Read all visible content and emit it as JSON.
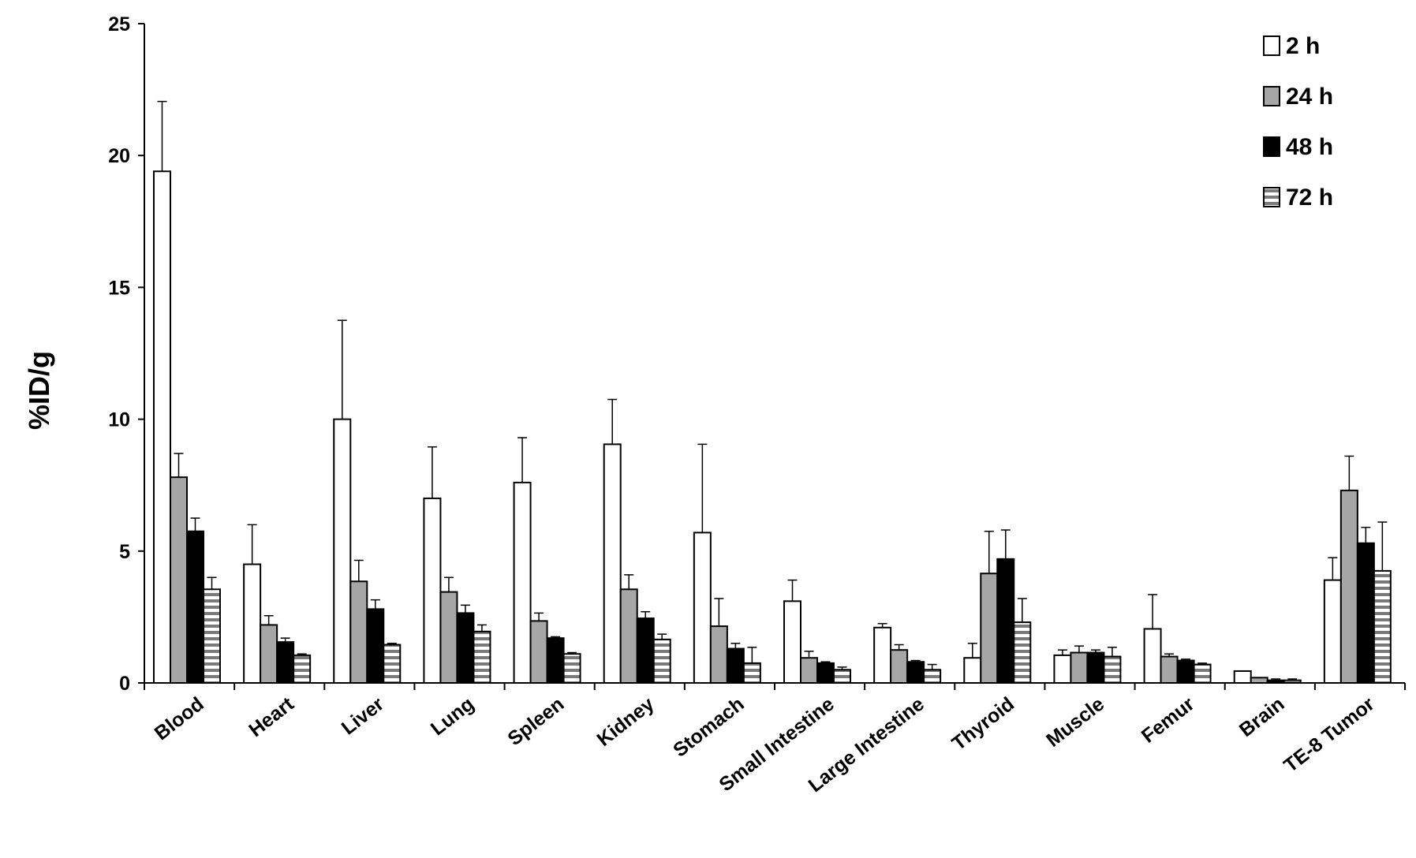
{
  "chart_data": {
    "type": "bar",
    "title": "",
    "xlabel": "",
    "ylabel": "%ID/g",
    "ylim": [
      0,
      25
    ],
    "yticks": [
      "0",
      "5",
      "10",
      "15",
      "20",
      "25"
    ],
    "grid": false,
    "legend_position": "top-right",
    "categories": [
      "Blood",
      "Heart",
      "Liver",
      "Lung",
      "Spleen",
      "Kidney",
      "Stomach",
      "Small Intestine",
      "Large Intestine",
      "Thyroid",
      "Muscle",
      "Femur",
      "Brain",
      "TE-8 Tumor"
    ],
    "series": [
      {
        "name": "2 h",
        "fill": "#ffffff",
        "pattern": "none",
        "values": [
          19.4,
          4.5,
          10.0,
          7.0,
          7.6,
          9.05,
          5.7,
          3.1,
          2.1,
          0.95,
          1.05,
          2.05,
          0.45,
          3.9
        ],
        "errors": [
          2.65,
          1.5,
          3.75,
          1.95,
          1.7,
          1.7,
          3.35,
          0.8,
          0.15,
          0.55,
          0.2,
          1.3,
          0.0,
          0.85
        ]
      },
      {
        "name": "24 h",
        "fill": "#a6a6a6",
        "pattern": "none",
        "values": [
          7.8,
          2.2,
          3.85,
          3.45,
          2.35,
          3.55,
          2.15,
          0.95,
          1.25,
          4.15,
          1.15,
          1.0,
          0.2,
          7.3
        ],
        "errors": [
          0.9,
          0.35,
          0.8,
          0.55,
          0.3,
          0.55,
          1.05,
          0.25,
          0.2,
          1.6,
          0.25,
          0.1,
          0.0,
          1.3
        ]
      },
      {
        "name": "48 h",
        "fill": "#000000",
        "pattern": "none",
        "values": [
          5.75,
          1.55,
          2.8,
          2.65,
          1.7,
          2.45,
          1.3,
          0.75,
          0.8,
          4.7,
          1.15,
          0.85,
          0.1,
          5.3
        ],
        "errors": [
          0.5,
          0.15,
          0.35,
          0.3,
          0.05,
          0.25,
          0.2,
          0.05,
          0.05,
          1.1,
          0.1,
          0.05,
          0.05,
          0.6
        ]
      },
      {
        "name": "72 h",
        "fill": "#909090",
        "pattern": "horizontal-stripes",
        "values": [
          3.55,
          1.05,
          1.45,
          1.95,
          1.1,
          1.65,
          0.75,
          0.5,
          0.5,
          2.3,
          1.0,
          0.7,
          0.1,
          4.25
        ],
        "errors": [
          0.45,
          0.05,
          0.05,
          0.25,
          0.05,
          0.2,
          0.6,
          0.1,
          0.2,
          0.9,
          0.35,
          0.05,
          0.05,
          1.85
        ]
      }
    ]
  }
}
